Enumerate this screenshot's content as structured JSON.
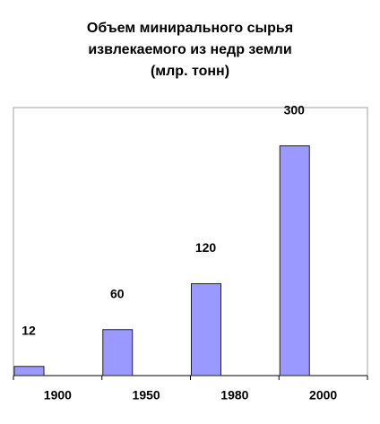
{
  "chart_data": {
    "type": "bar",
    "title": [
      "Объем минирального сырья",
      "извлекаемого из недр земли",
      "(млр. тонн)"
    ],
    "categories": [
      "1900",
      "1950",
      "1980",
      "2000"
    ],
    "values": [
      12,
      60,
      120,
      300
    ],
    "color": "#9999ff",
    "ylim": [
      0,
      350
    ]
  }
}
